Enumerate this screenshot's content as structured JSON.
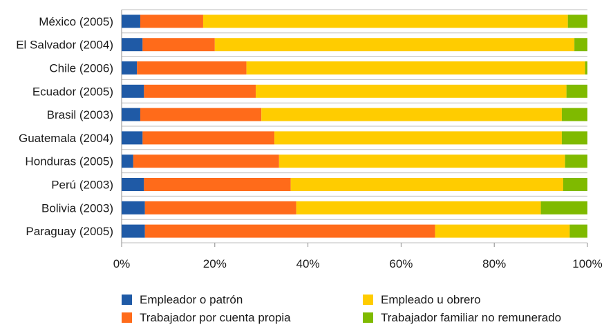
{
  "chart_data": {
    "type": "bar",
    "orientation": "horizontal",
    "stacked": true,
    "normalized": true,
    "categories": [
      "México (2005)",
      "El Salvador (2004)",
      "Chile (2006)",
      "Ecuador (2005)",
      "Brasil (2003)",
      "Guatemala (2004)",
      "Honduras (2005)",
      "Perú (2003)",
      "Bolivia (2003)",
      "Paraguay (2005)"
    ],
    "series": [
      {
        "name": "Empleador o patrón",
        "color": "#1f5aa6",
        "values": [
          4.0,
          4.5,
          3.3,
          4.8,
          4.0,
          4.5,
          2.5,
          4.8,
          5.0,
          5.0
        ]
      },
      {
        "name": "Trabajador por cuenta propia",
        "color": "#ff6b1a",
        "values": [
          13.5,
          15.5,
          23.5,
          24.0,
          26.0,
          28.3,
          31.3,
          31.5,
          32.5,
          62.3
        ]
      },
      {
        "name": "Empleado u obrero",
        "color": "#ffcc00",
        "values": [
          78.3,
          77.2,
          72.7,
          66.7,
          64.5,
          61.7,
          61.4,
          58.5,
          52.5,
          28.9
        ]
      },
      {
        "name": "Trabajador familiar no remunerado",
        "color": "#7fba00",
        "values": [
          4.2,
          2.8,
          0.5,
          4.5,
          5.5,
          5.5,
          4.8,
          5.2,
          10.0,
          3.8
        ]
      }
    ],
    "xlim": [
      0,
      100
    ],
    "xticks": [
      "0%",
      "20%",
      "40%",
      "60%",
      "80%",
      "100%"
    ],
    "grid": "horizontal separators",
    "legend_position": "bottom"
  }
}
